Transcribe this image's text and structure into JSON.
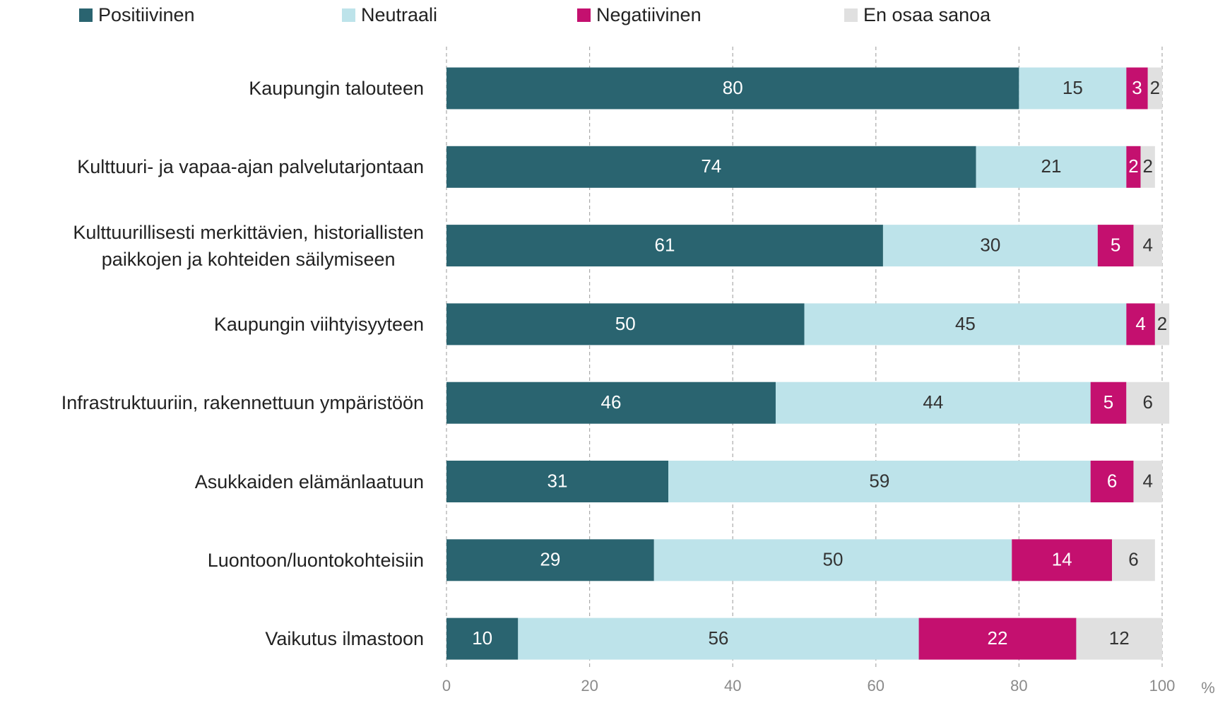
{
  "chart_data": {
    "type": "stacked_barh",
    "categories": [
      "Kaupungin talouteen",
      "Kulttuuri- ja vapaa-ajan palvelutarjontaan",
      "Kulttuurillisesti merkittävien, historiallisten\npaikkojen ja kohteiden säilymiseen",
      "Kaupungin viihtyisyyteen",
      "Infrastruktuuriin, rakennettuun ympäristöön",
      "Asukkaiden elämänlaatuun",
      "Luontoon/luontokohteisiin",
      "Vaikutus ilmastoon"
    ],
    "series": [
      {
        "name": "Positiivinen",
        "color": "#2a6470",
        "label_color": "#ffffff",
        "values": [
          80,
          74,
          61,
          50,
          46,
          31,
          29,
          10
        ]
      },
      {
        "name": "Neutraali",
        "color": "#bde3ea",
        "label_color": "#333333",
        "values": [
          15,
          21,
          30,
          45,
          44,
          59,
          50,
          56
        ]
      },
      {
        "name": "Negatiivinen",
        "color": "#c4106f",
        "label_color": "#ffffff",
        "values": [
          3,
          2,
          5,
          4,
          5,
          6,
          14,
          22
        ]
      },
      {
        "name": "En osaa sanoa",
        "color": "#e0e0e0",
        "label_color": "#333333",
        "values": [
          2,
          2,
          4,
          2,
          6,
          4,
          6,
          12
        ]
      }
    ],
    "xlim": [
      0,
      100
    ],
    "xticks": [
      0,
      20,
      40,
      60,
      80,
      100
    ],
    "x_unit": "%",
    "grid": true,
    "legend": "top"
  }
}
